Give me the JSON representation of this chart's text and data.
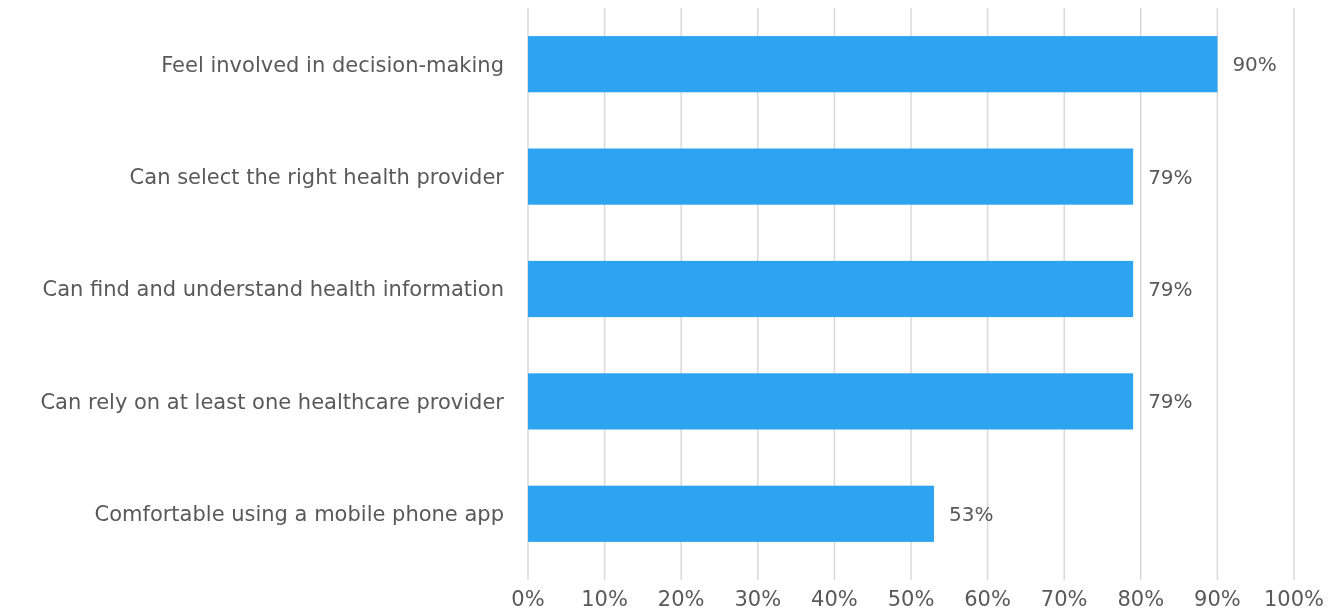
{
  "chart_data": {
    "type": "bar",
    "orientation": "horizontal",
    "categories": [
      "Feel involved in decision-making",
      "Can select the right health provider",
      "Can find and understand health information",
      "Can rely on at least one healthcare provider",
      "Comfortable using a mobile phone app"
    ],
    "values": [
      90,
      79,
      79,
      79,
      53
    ],
    "value_labels": [
      "90%",
      "79%",
      "79%",
      "79%",
      "53%"
    ],
    "color": "#2ea3f0",
    "xlim": [
      0,
      100
    ],
    "xticks": [
      {
        "value": 0,
        "label": "0%"
      },
      {
        "value": 10,
        "label": "10%"
      },
      {
        "value": 20,
        "label": "20%"
      },
      {
        "value": 30,
        "label": "30%"
      },
      {
        "value": 40,
        "label": "40%"
      },
      {
        "value": 50,
        "label": "50%"
      },
      {
        "value": 60,
        "label": "60%"
      },
      {
        "value": 70,
        "label": "70%"
      },
      {
        "value": 80,
        "label": "80%"
      },
      {
        "value": 90,
        "label": "90%"
      },
      {
        "value": 100,
        "label": "100%"
      }
    ],
    "grid": "x"
  }
}
